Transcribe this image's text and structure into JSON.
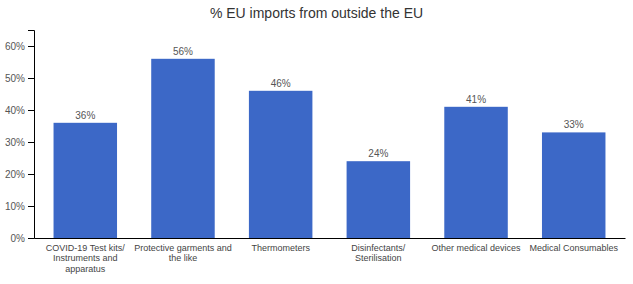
{
  "chart_data": {
    "type": "bar",
    "title": "% EU imports from outside the EU",
    "categories": [
      "COVID-19 Test kits/\nInstruments and\napparatus",
      "Protective garments and\nthe like",
      "Thermometers",
      "Disinfectants/\nSterilisation",
      "Other medical devices",
      "Medical Consumables"
    ],
    "values": [
      36,
      56,
      46,
      24,
      41,
      33
    ],
    "value_labels": [
      "36%",
      "56%",
      "46%",
      "24%",
      "41%",
      "33%"
    ],
    "data_labels": true,
    "color": "#3C68C7",
    "ylim": [
      0,
      65
    ],
    "yticks": [
      {
        "value": 0,
        "label": "0%"
      },
      {
        "value": 10,
        "label": "10%"
      },
      {
        "value": 20,
        "label": "20%"
      },
      {
        "value": 30,
        "label": "30%"
      },
      {
        "value": 40,
        "label": "40%"
      },
      {
        "value": 50,
        "label": "50%"
      },
      {
        "value": 60,
        "label": "60%"
      }
    ],
    "grid": false
  }
}
